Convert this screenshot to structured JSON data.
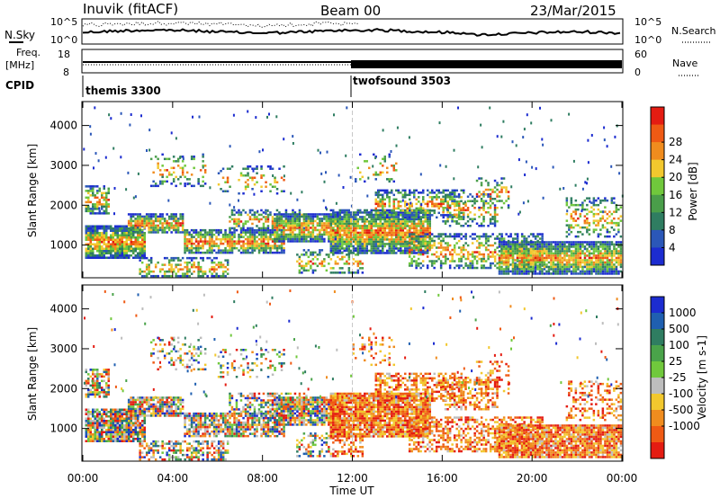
{
  "header": {
    "station": "Inuvik (fitACF)",
    "beam": "Beam 00",
    "date": "23/Mar/2015"
  },
  "top_panels": {
    "nsky_label": "N.Sky",
    "nsky_ticks": [
      "10^5",
      "10^0"
    ],
    "nsearch_label": "N.Search",
    "freq_label_line1": "Freq.",
    "freq_label_line2": "[MHz]",
    "freq_ticks": [
      "18",
      "8"
    ],
    "nave_label": "Nave",
    "nave_ticks": [
      "60",
      "0"
    ],
    "cpid_label": "CPID",
    "cpid_modes": [
      "themis 3300",
      "twofsound 3503"
    ]
  },
  "colors": {
    "power_scale": [
      "#1c2cd0",
      "#2b57b8",
      "#2f7d61",
      "#4a9e4a",
      "#70c83c",
      "#f2c82e",
      "#f08c1e",
      "#ef5a14",
      "#e41c12"
    ],
    "velocity_scale": [
      "#1c2cd0",
      "#1f5fb0",
      "#2f7d61",
      "#4aa34a",
      "#70c83c",
      "#bdbdbd",
      "#f2c82e",
      "#f08c1e",
      "#ef5a14",
      "#e41c12"
    ]
  },
  "chart_data": [
    {
      "type": "heatmap",
      "title": "",
      "xlabel": "Time UT",
      "ylabel": "Slant Range [km]",
      "xlim": [
        "00:00",
        "24:00"
      ],
      "ylim": [
        180,
        4600
      ],
      "x_tick_labels": [
        "00:00",
        "04:00",
        "08:00",
        "12:00",
        "16:00",
        "20:00",
        "00:00"
      ],
      "y_tick_labels": [
        "1000",
        "2000",
        "3000",
        "4000"
      ],
      "colorbar": {
        "label": "Power [dB]",
        "range": [
          0,
          32
        ],
        "tick_labels": [
          "4",
          "8",
          "12",
          "16",
          "20",
          "24",
          "28"
        ]
      }
    },
    {
      "type": "heatmap",
      "title": "",
      "xlabel": "Time UT",
      "ylabel": "Slant Range [km]",
      "xlim": [
        "00:00",
        "24:00"
      ],
      "ylim": [
        180,
        4600
      ],
      "x_tick_labels": [
        "00:00",
        "04:00",
        "08:00",
        "12:00",
        "16:00",
        "20:00",
        "00:00"
      ],
      "y_tick_labels": [
        "1000",
        "2000",
        "3000",
        "4000"
      ],
      "colorbar": {
        "label": "Velocity [m s-1]",
        "tick_labels": [
          "1000",
          "500",
          "100",
          "25",
          "-25",
          "-100",
          "-500",
          "-1000"
        ]
      }
    }
  ]
}
